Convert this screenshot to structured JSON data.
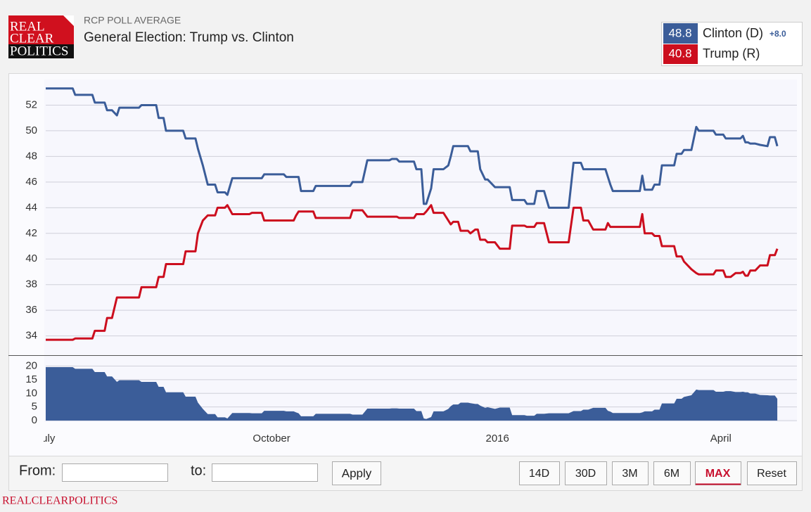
{
  "header": {
    "logo": [
      "REAL",
      "CLEAR",
      "POLITICS"
    ],
    "kicker": "RCP POLL AVERAGE",
    "title": "General Election: Trump vs. Clinton",
    "current": [
      48.8,
      40.8
    ],
    "lead": "+8.0"
  },
  "chart_data": {
    "type": "line",
    "x": [
      0,
      11,
      12,
      19,
      20,
      24,
      25,
      27,
      29,
      30,
      38,
      39,
      45,
      46,
      48,
      49,
      56,
      57,
      61,
      62,
      64,
      66,
      69,
      70,
      73,
      74,
      76,
      83,
      84,
      88,
      89,
      97,
      98,
      101,
      102,
      103,
      104,
      109,
      110,
      124,
      125,
      129,
      131,
      140,
      141,
      143,
      144,
      150,
      151,
      153,
      154,
      155,
      157,
      158,
      162,
      164,
      165,
      166,
      168,
      169,
      172,
      173,
      175,
      176,
      177,
      179,
      180,
      183,
      185,
      189,
      190,
      195,
      196,
      199,
      200,
      203,
      205,
      213,
      215,
      218,
      219,
      221,
      223,
      228,
      229,
      230,
      231,
      242,
      243,
      244,
      247,
      248,
      250,
      251,
      256,
      257,
      259,
      260,
      263,
      265,
      266,
      272,
      273,
      276,
      277,
      279,
      281,
      283,
      284,
      285,
      286,
      287,
      289,
      291,
      294,
      295,
      297,
      298
    ],
    "series": [
      {
        "name": "Clinton (D)",
        "color": "#3b5d99",
        "values": [
          53.3,
          53.3,
          52.8,
          52.8,
          52.2,
          52.2,
          51.6,
          51.6,
          51.2,
          51.8,
          51.8,
          52.0,
          52.0,
          51.0,
          51.0,
          50.0,
          50.0,
          49.4,
          49.4,
          48.6,
          47.3,
          45.8,
          45.8,
          45.2,
          45.2,
          45.0,
          46.3,
          46.3,
          46.3,
          46.3,
          46.6,
          46.6,
          46.4,
          46.4,
          46.4,
          46.4,
          45.3,
          45.3,
          45.7,
          45.7,
          46.0,
          46.0,
          47.7,
          47.7,
          47.8,
          47.8,
          47.6,
          47.6,
          47.0,
          47.0,
          44.3,
          44.3,
          45.5,
          47.0,
          47.0,
          47.3,
          48.0,
          48.8,
          48.8,
          48.8,
          48.8,
          48.4,
          48.4,
          48.4,
          47.0,
          46.2,
          46.2,
          45.6,
          45.6,
          45.6,
          44.6,
          44.6,
          44.3,
          44.3,
          45.3,
          45.3,
          44.0,
          44.0,
          47.5,
          47.5,
          47.0,
          47.0,
          47.0,
          47.0,
          46.4,
          45.8,
          45.3,
          45.3,
          46.5,
          45.4,
          45.4,
          45.8,
          45.8,
          47.3,
          47.3,
          48.2,
          48.2,
          48.5,
          48.5,
          50.3,
          50.0,
          50.0,
          49.7,
          49.7,
          49.4,
          49.4,
          49.4,
          49.4,
          49.6,
          49.1,
          49.1,
          49.0,
          49.0,
          48.9,
          48.8,
          49.5,
          49.5,
          48.8
        ]
      },
      {
        "name": "Trump (R)",
        "color": "#cc0e1e",
        "values": [
          33.7,
          33.7,
          33.8,
          33.8,
          34.4,
          34.4,
          35.4,
          35.4,
          37.0,
          37.0,
          37.0,
          37.8,
          37.8,
          38.6,
          38.6,
          39.6,
          39.6,
          40.6,
          40.6,
          42.0,
          43.0,
          43.4,
          43.4,
          44.0,
          44.0,
          44.2,
          43.5,
          43.5,
          43.6,
          43.6,
          43.0,
          43.0,
          43.0,
          43.0,
          43.4,
          43.7,
          43.7,
          43.7,
          43.2,
          43.2,
          43.8,
          43.8,
          43.3,
          43.3,
          43.3,
          43.3,
          43.2,
          43.2,
          43.5,
          43.5,
          43.5,
          43.7,
          44.2,
          43.6,
          43.6,
          43.0,
          42.7,
          42.9,
          42.9,
          42.2,
          42.2,
          42.0,
          42.3,
          42.3,
          41.5,
          41.5,
          41.3,
          41.3,
          40.8,
          40.8,
          42.6,
          42.6,
          42.5,
          42.5,
          42.8,
          42.8,
          41.3,
          41.3,
          44.0,
          44.0,
          43.0,
          43.0,
          42.3,
          42.3,
          42.8,
          42.5,
          42.5,
          42.5,
          43.5,
          42.0,
          42.0,
          41.8,
          41.8,
          41.0,
          41.0,
          40.2,
          40.2,
          39.8,
          39.2,
          38.9,
          38.8,
          38.8,
          39.1,
          39.1,
          38.6,
          38.6,
          38.9,
          38.9,
          39.0,
          38.7,
          38.7,
          39.1,
          39.1,
          39.5,
          39.5,
          40.3,
          40.3,
          40.8
        ]
      },
      {
        "type": "area",
        "axis": "y2",
        "color": "#3b5d99",
        "values": [
          19.6,
          19.6,
          19.0,
          19.0,
          17.8,
          17.8,
          16.2,
          16.2,
          14.2,
          14.8,
          14.8,
          14.2,
          14.2,
          12.4,
          12.4,
          10.4,
          10.4,
          8.8,
          8.8,
          6.6,
          4.3,
          2.4,
          2.4,
          1.2,
          1.2,
          0.8,
          2.8,
          2.8,
          2.7,
          2.7,
          3.6,
          3.6,
          3.4,
          3.4,
          3.0,
          2.7,
          1.6,
          1.6,
          2.5,
          2.5,
          2.2,
          2.2,
          4.4,
          4.4,
          4.5,
          4.5,
          4.4,
          4.4,
          3.5,
          3.5,
          0.8,
          0.6,
          1.3,
          3.4,
          3.4,
          4.3,
          5.3,
          5.9,
          5.9,
          6.6,
          6.6,
          6.4,
          6.1,
          6.1,
          5.5,
          4.7,
          4.9,
          4.3,
          4.8,
          4.8,
          2.0,
          2.0,
          1.8,
          1.8,
          2.5,
          2.5,
          2.7,
          2.7,
          3.5,
          3.5,
          4.0,
          4.0,
          4.7,
          4.7,
          3.6,
          3.3,
          2.8,
          2.8,
          3.0,
          3.4,
          3.4,
          4.0,
          4.0,
          6.3,
          6.3,
          8.0,
          8.0,
          8.7,
          9.3,
          11.4,
          11.2,
          11.2,
          10.6,
          10.6,
          10.8,
          10.8,
          10.5,
          10.5,
          10.6,
          10.4,
          10.4,
          9.9,
          9.9,
          9.4,
          9.3,
          9.2,
          9.2,
          8.0
        ]
      }
    ],
    "xlim": [
      0,
      306
    ],
    "xticks": [
      {
        "value": 0,
        "label": "July"
      },
      {
        "value": 92,
        "label": "October"
      },
      {
        "value": 184,
        "label": "2016"
      },
      {
        "value": 275,
        "label": "April"
      }
    ],
    "ylim": [
      32.5,
      54
    ],
    "yticks": [
      34,
      36,
      38,
      40,
      42,
      44,
      46,
      48,
      50,
      52
    ],
    "y2lim": [
      -0.5,
      24
    ],
    "y2ticks": [
      0,
      5,
      10,
      15,
      20
    ],
    "grid": true
  },
  "controls": {
    "from": "From:",
    "to": "to:",
    "apply": "Apply",
    "ranges": [
      "14D",
      "30D",
      "3M",
      "6M",
      "MAX",
      "Reset"
    ],
    "active": "MAX"
  },
  "footer": "REALCLEARPOLITICS"
}
